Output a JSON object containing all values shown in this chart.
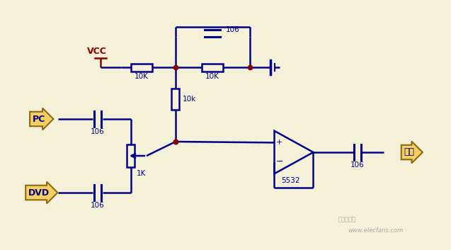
{
  "bg_color": "#f5f0d8",
  "wire_color": "#00008B",
  "component_color": "#00008B",
  "label_color": "#00008B",
  "vcc_color": "#8B0000",
  "dot_color": "#8B0000",
  "tag_bg": "#f5d060",
  "tag_border": "#8B6914",
  "watermark": "www.elecfans.com",
  "elecfans": "电子发烧友",
  "components": {
    "R1_label": "10K",
    "R2_label": "10K",
    "R3_label": "10k",
    "R4_label": "1K",
    "C1_label": "106",
    "C2_label": "106",
    "C3_label": "106",
    "C4_label": "106",
    "C5_label": "106",
    "opamp_label": "5532",
    "vcc_label": "VCC",
    "pc_label": "PC",
    "dvd_label": "DVD",
    "out_label": "输出"
  }
}
